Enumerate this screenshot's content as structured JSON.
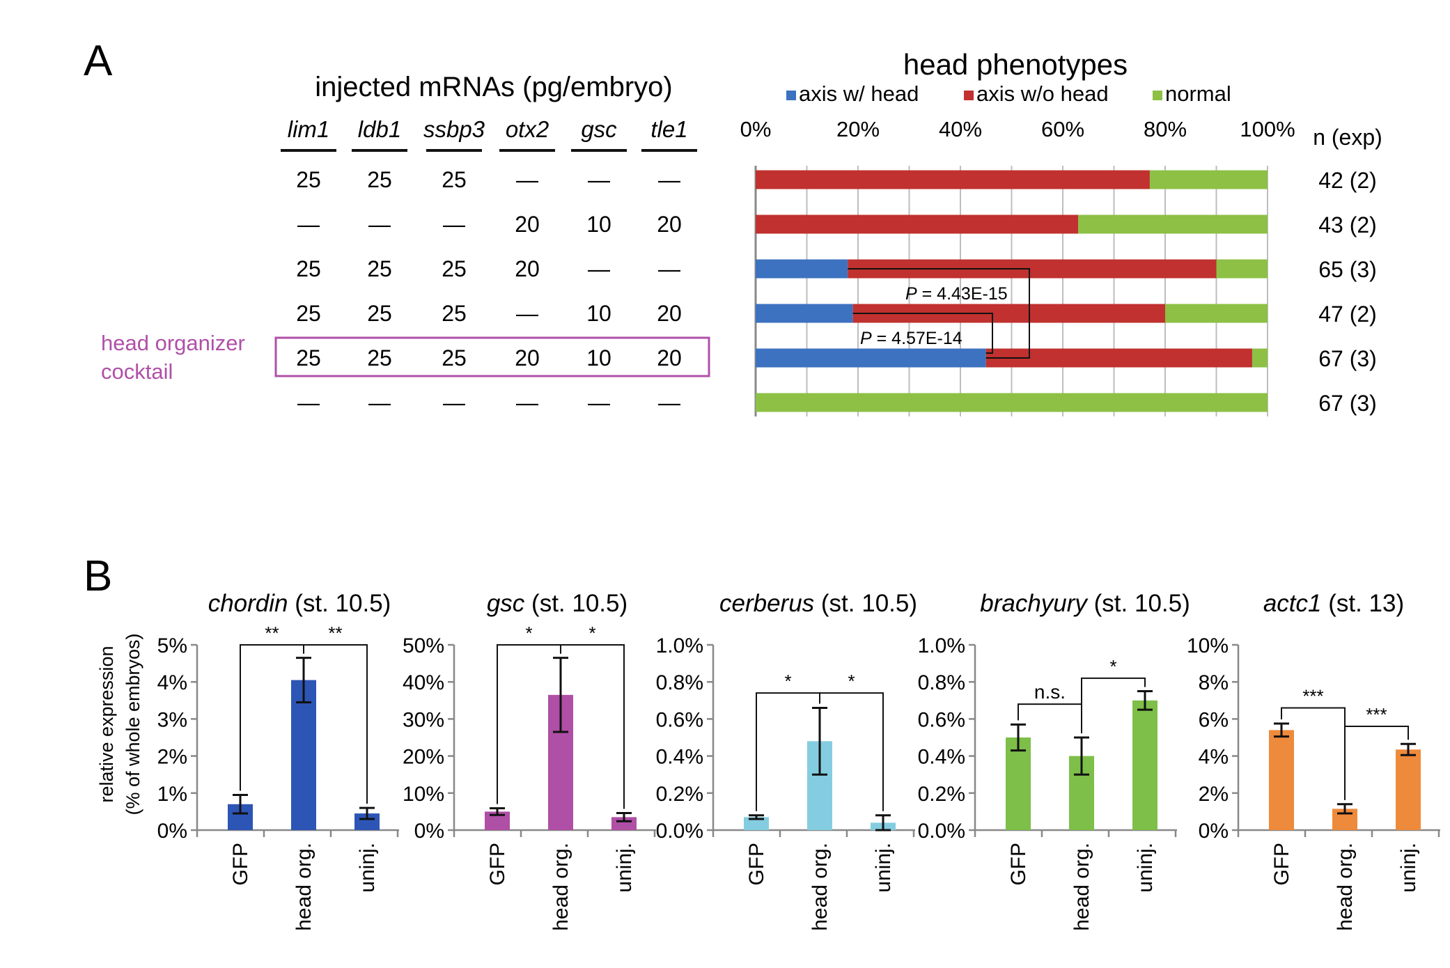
{
  "panel_a": {
    "label": "A",
    "table_title": "injected mRNAs (pg/embryo)",
    "genes": [
      "lim1",
      "ldb1",
      "ssbp3",
      "otx2",
      "gsc",
      "tle1"
    ],
    "rows": [
      [
        "25",
        "25",
        "25",
        "—",
        "—",
        "—"
      ],
      [
        "—",
        "—",
        "—",
        "20",
        "10",
        "20"
      ],
      [
        "25",
        "25",
        "25",
        "20",
        "—",
        "—"
      ],
      [
        "25",
        "25",
        "25",
        "—",
        "10",
        "20"
      ],
      [
        "25",
        "25",
        "25",
        "20",
        "10",
        "20"
      ],
      [
        "—",
        "—",
        "—",
        "—",
        "—",
        "—"
      ]
    ],
    "highlight_label_line1": "head organizer",
    "highlight_label_line2": "cocktail",
    "highlight_color": "#b050a8"
  },
  "chart_data": [
    {
      "type": "bar",
      "orientation": "horizontal-stacked-percent",
      "title": "head phenotypes",
      "legend": [
        "axis w/ head",
        "axis w/o head",
        "normal"
      ],
      "colors": [
        "#3c72c0",
        "#c0312f",
        "#8dc045"
      ],
      "xlim": [
        0,
        100
      ],
      "x_ticks": [
        "0%",
        "20%",
        "40%",
        "60%",
        "80%",
        "100%"
      ],
      "n_label": "n (exp)",
      "n_values": [
        "42 (2)",
        "43 (2)",
        "65 (3)",
        "47 (2)",
        "67 (3)",
        "67 (3)"
      ],
      "series": [
        {
          "name": "axis w/ head",
          "values": [
            0,
            0,
            18,
            19,
            45,
            0
          ]
        },
        {
          "name": "axis w/o head",
          "values": [
            77,
            63,
            72,
            61,
            52,
            0
          ]
        },
        {
          "name": "normal",
          "values": [
            23,
            37,
            10,
            20,
            3,
            100
          ]
        }
      ],
      "pvalues": [
        {
          "label": "P = 4.43E-15",
          "rows": [
            3,
            5
          ]
        },
        {
          "label": "P = 4.57E-14",
          "rows": [
            4,
            5
          ]
        }
      ]
    },
    {
      "type": "bar",
      "panel": "B",
      "gene": "chordin",
      "stage": "(st. 10.5)",
      "ylabel_line1": "relative expression",
      "ylabel_line2": "(% of whole embryos)",
      "categories": [
        "GFP",
        "head org.",
        "uninj."
      ],
      "values": [
        0.7,
        4.05,
        0.45
      ],
      "errors": [
        0.25,
        0.6,
        0.15
      ],
      "ylim": [
        0,
        5
      ],
      "y_ticks": [
        "0%",
        "1%",
        "2%",
        "3%",
        "4%",
        "5%"
      ],
      "color": "#2d55b5",
      "sig": [
        {
          "from": 0,
          "to": 1,
          "label": "**",
          "y": 5.0
        },
        {
          "from": 1,
          "to": 2,
          "label": "**",
          "y": 5.0
        }
      ]
    },
    {
      "type": "bar",
      "gene": "gsc",
      "stage": "(st. 10.5)",
      "categories": [
        "GFP",
        "head org.",
        "uninj."
      ],
      "values": [
        5,
        36.5,
        3.5
      ],
      "errors": [
        0.9,
        10,
        1.1
      ],
      "ylim": [
        0,
        50
      ],
      "y_ticks": [
        "0%",
        "10%",
        "20%",
        "30%",
        "40%",
        "50%"
      ],
      "color": "#b04fa6",
      "sig": [
        {
          "from": 0,
          "to": 1,
          "label": "*",
          "y": 50
        },
        {
          "from": 1,
          "to": 2,
          "label": "*",
          "y": 50
        }
      ]
    },
    {
      "type": "bar",
      "gene": "cerberus",
      "stage": "(st. 10.5)",
      "categories": [
        "GFP",
        "head org.",
        "uninj."
      ],
      "values": [
        0.07,
        0.48,
        0.04
      ],
      "errors": [
        0.01,
        0.18,
        0.04
      ],
      "ylim": [
        0,
        1.0
      ],
      "y_ticks": [
        "0.0%",
        "0.2%",
        "0.4%",
        "0.6%",
        "0.8%",
        "1.0%"
      ],
      "color": "#84cde0",
      "sig": [
        {
          "from": 0,
          "to": 1,
          "label": "*",
          "y": 0.74
        },
        {
          "from": 1,
          "to": 2,
          "label": "*",
          "y": 0.74
        }
      ]
    },
    {
      "type": "bar",
      "gene": "brachyury",
      "stage": "(st. 10.5)",
      "categories": [
        "GFP",
        "head org.",
        "uninj."
      ],
      "values": [
        0.5,
        0.4,
        0.7
      ],
      "errors": [
        0.07,
        0.1,
        0.05
      ],
      "ylim": [
        0,
        1.0
      ],
      "y_ticks": [
        "0.0%",
        "0.2%",
        "0.4%",
        "0.6%",
        "0.8%",
        "1.0%"
      ],
      "color": "#7dbf48",
      "sig": [
        {
          "from": 0,
          "to": 1,
          "label": "n.s.",
          "y": 0.68
        },
        {
          "from": 1,
          "to": 2,
          "label": "*",
          "y": 0.82
        }
      ]
    },
    {
      "type": "bar",
      "gene": "actc1",
      "stage": "(st. 13)",
      "categories": [
        "GFP",
        "head org.",
        "uninj."
      ],
      "values": [
        5.4,
        1.15,
        4.35
      ],
      "errors": [
        0.35,
        0.25,
        0.3
      ],
      "ylim": [
        0,
        10
      ],
      "y_ticks": [
        "0%",
        "2%",
        "4%",
        "6%",
        "8%",
        "10%"
      ],
      "color": "#ee8a3c",
      "sig": [
        {
          "from": 0,
          "to": 1,
          "label": "***",
          "y": 6.6
        },
        {
          "from": 1,
          "to": 2,
          "label": "***",
          "y": 5.6
        }
      ]
    }
  ]
}
